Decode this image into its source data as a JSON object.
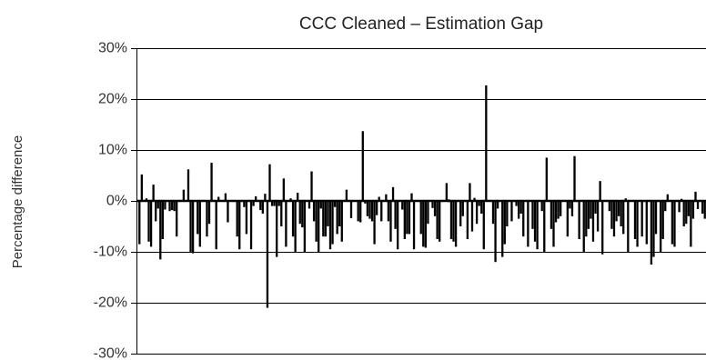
{
  "chart_data": {
    "type": "bar",
    "title": "CCC Cleaned – Estimation Gap",
    "xlabel": "",
    "ylabel": "Percentage difference",
    "ylim": [
      -30,
      30
    ],
    "yticks": [
      30,
      20,
      10,
      0,
      -10,
      -20,
      -30
    ],
    "ytick_labels": [
      "30%",
      "20%",
      "10%",
      "0%",
      "-10%",
      "-20%",
      "-30%"
    ],
    "grid": true,
    "legend": "none",
    "bar_color": "#000000",
    "values": [
      -8.5,
      5.2,
      0,
      0.5,
      -8,
      -9,
      3.2,
      -4,
      -1.5,
      -11.5,
      -7.5,
      -1.7,
      0,
      -2,
      -1.8,
      -2,
      -7,
      0,
      0,
      2.2,
      0,
      6.2,
      -10,
      -10.3,
      0,
      -6.5,
      -9,
      0,
      0,
      -7,
      -4.5,
      7.5,
      0,
      -9.5,
      0.8,
      0,
      0,
      1.5,
      -4.2,
      0,
      0,
      0,
      -7,
      -9.5,
      0,
      -1.2,
      -6.5,
      0,
      -9.5,
      -1,
      0.9,
      0,
      -1.8,
      -2.5,
      1.4,
      -21,
      7.2,
      -1,
      -1,
      -11,
      -1,
      -5,
      4.4,
      -9,
      0,
      0.5,
      -7,
      -10,
      1.6,
      -4.5,
      -5.2,
      -10,
      0,
      -1.5,
      5.8,
      -4,
      -8,
      -10,
      -1.5,
      -7,
      -7,
      -5,
      -9.5,
      -8.5,
      -1.2,
      -6.5,
      -5,
      -8,
      0,
      2.2,
      0,
      -3.4,
      0,
      0,
      -4,
      -4.2,
      13.7,
      -0.5,
      -3,
      -3.5,
      -4,
      -8.5,
      -2.8,
      0.8,
      -4,
      0,
      1.3,
      -4,
      -8,
      2.7,
      -5.5,
      -9.5,
      0,
      -1.7,
      -7.5,
      -6.5,
      -6.5,
      1.5,
      -9.5,
      0,
      0,
      -6.5,
      -9,
      -9.2,
      -4.5,
      0,
      -1.4,
      -3,
      -7.5,
      -8,
      0,
      0,
      3.5,
      0.3,
      -7.5,
      -8,
      -9,
      0,
      -5,
      -3,
      0,
      -7.5,
      3.5,
      -6,
      0.6,
      -4.5,
      -1,
      -2.5,
      -9.5,
      22.7,
      0,
      0,
      -4.5,
      -12,
      -1.5,
      0,
      -11,
      -8.5,
      -5,
      0,
      -4,
      0,
      -1,
      -3.5,
      -2.5,
      -7,
      0,
      -9,
      0,
      -5.5,
      -8,
      -9.5,
      0,
      -2,
      -10,
      8.5,
      0,
      -5.5,
      -9,
      -4.2,
      -3.5,
      -3,
      0,
      0,
      -7,
      -1.5,
      -3,
      8.8,
      0,
      -7.5,
      0,
      -10,
      -7,
      -5.5,
      -3.5,
      -8,
      -2.5,
      -6,
      3.9,
      -10.5,
      0,
      0,
      -2,
      -5.5,
      -7,
      -4,
      -3,
      -5,
      -6.5,
      0.5,
      -10,
      0,
      0,
      -7.5,
      -9,
      0,
      -7,
      0,
      -8.5,
      0,
      -12.5,
      -11,
      -6.5,
      0,
      -10,
      -7.5,
      -2,
      1.3,
      0,
      -8.5,
      -9,
      0,
      -2.2,
      0.4,
      -5,
      -4.5,
      -3,
      -9,
      -3.5,
      1.8,
      -1.6,
      0,
      -2.5,
      -3.5
    ]
  }
}
